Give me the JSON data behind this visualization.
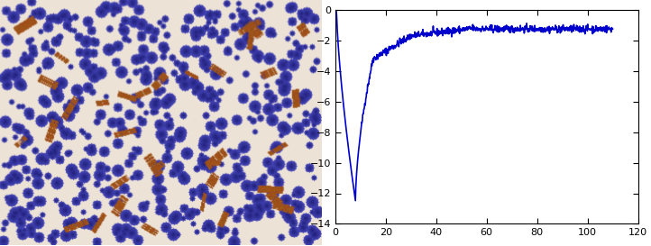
{
  "xlim": [
    0,
    120
  ],
  "ylim": [
    -14,
    0
  ],
  "xticks": [
    0,
    20,
    40,
    60,
    80,
    100,
    120
  ],
  "yticks": [
    -14,
    -12,
    -10,
    -8,
    -6,
    -4,
    -2,
    0
  ],
  "line_color": "#0000cc",
  "line_width": 1.2,
  "noise_amplitude": 0.12,
  "bg_color": "#ffffff",
  "img_bg": [
    0.93,
    0.89,
    0.84
  ],
  "cell_color_inner": [
    0.12,
    0.12,
    0.55
  ],
  "cell_color_outer": [
    0.3,
    0.3,
    0.75
  ],
  "brown_color": [
    0.62,
    0.32,
    0.1
  ],
  "n_cells": 600,
  "n_brown": 35
}
